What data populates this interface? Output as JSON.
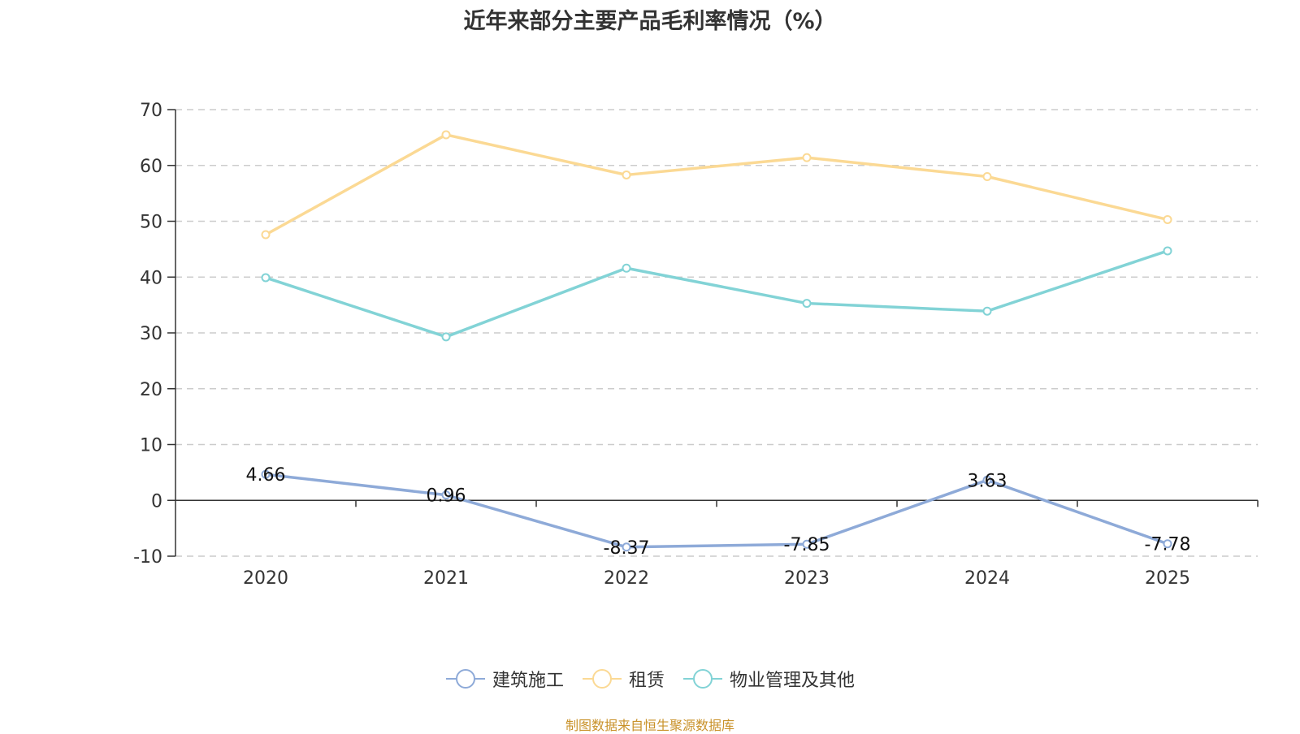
{
  "title": "近年来部分主要产品毛利率情况（%）",
  "source": "制图数据来自恒生聚源数据库",
  "chart_data": {
    "type": "line",
    "title": "近年来部分主要产品毛利率情况（%）",
    "categories": [
      "2020",
      "2021",
      "2022",
      "2023",
      "2024",
      "2025"
    ],
    "ylim": [
      -10,
      70
    ],
    "yticks": [
      -10,
      0,
      10,
      20,
      30,
      40,
      50,
      60,
      70
    ],
    "grid": true,
    "legend_position": "bottom",
    "series": [
      {
        "name": "建筑施工",
        "color": "#8eaad8",
        "values": [
          4.66,
          0.96,
          -8.37,
          -7.85,
          3.63,
          -7.78
        ],
        "labels": [
          "4.66",
          "0.96",
          "-8.37",
          "-7.85",
          "3.63",
          "-7.78"
        ]
      },
      {
        "name": "租赁",
        "color": "#fbd994",
        "values": [
          47.6,
          65.5,
          58.3,
          61.4,
          58.0,
          50.3
        ]
      },
      {
        "name": "物业管理及其他",
        "color": "#82d3d6",
        "values": [
          39.9,
          29.3,
          41.6,
          35.3,
          33.9,
          44.7
        ]
      }
    ]
  }
}
